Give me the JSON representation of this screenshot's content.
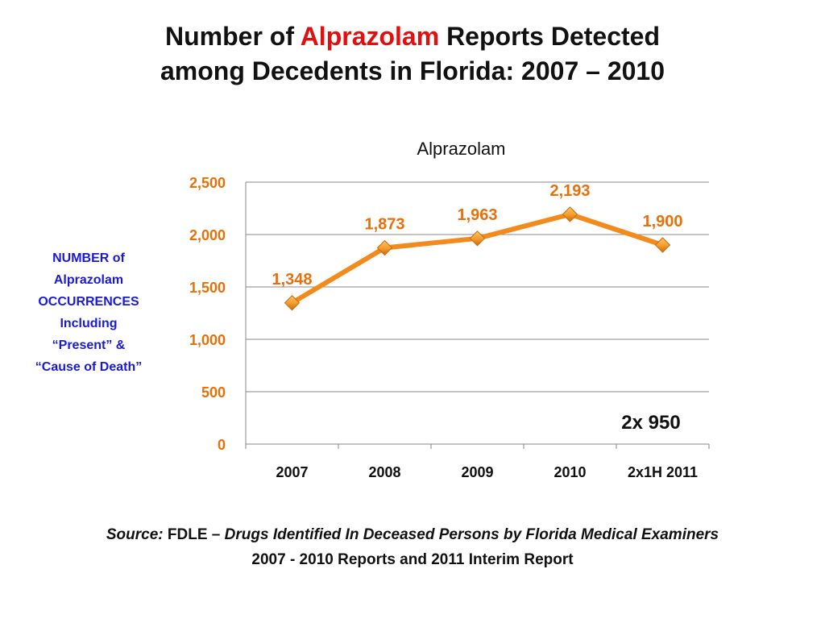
{
  "slide": {
    "title_part1": "Number of ",
    "title_highlight": "Alprazolam",
    "title_part2": " Reports Detected",
    "title_line2": "among Decedents in Florida: 2007 – 2010"
  },
  "y_axis_note": {
    "lines": [
      "NUMBER of",
      "Alprazolam",
      "OCCURRENCES",
      "Including",
      "“Present”  &",
      "“Cause of Death”"
    ]
  },
  "annotation": "2x 950",
  "source": {
    "label": "Source:",
    "agency": " FDLE – ",
    "title": "Drugs Identified In Deceased Persons by Florida Medical Examiners",
    "line2": "2007 - 2010 Reports and 2011 Interim  Report"
  },
  "colors": {
    "series": "#f28a1c",
    "title_accent": "#e01010",
    "axis_label": "#e8700a",
    "y_note": "#1a1ad6",
    "gridline": "#888888"
  },
  "chart_data": {
    "type": "line",
    "title": "Alprazolam",
    "categories": [
      "2007",
      "2008",
      "2009",
      "2010",
      "2x1H 2011"
    ],
    "series": [
      {
        "values": [
          1348,
          1873,
          1963,
          2193,
          1900
        ],
        "data_labels": [
          "1,348",
          "1,873",
          "1,963",
          "2,193",
          "1,900"
        ]
      }
    ],
    "yticks": [
      "0",
      "500",
      "1,000",
      "1,500",
      "2,000",
      "2,500"
    ],
    "ytick_values": [
      0,
      500,
      1000,
      1500,
      2000,
      2500
    ],
    "ylim": [
      0,
      2500
    ],
    "grid": true,
    "marker": "diamond"
  }
}
